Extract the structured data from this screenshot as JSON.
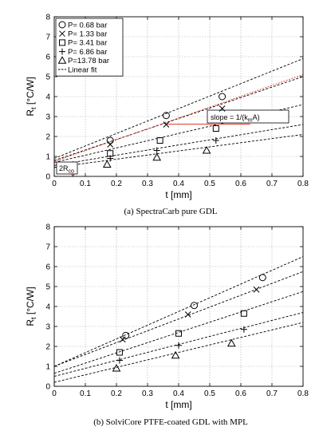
{
  "chart_data": [
    {
      "type": "scatter",
      "caption": "(a) SpectraCarb pure GDL",
      "xlabel": "t [mm]",
      "ylabel_main": "R",
      "ylabel_sub": "t",
      "ylabel_unit": " [°C/W]",
      "xlim": [
        0,
        0.8
      ],
      "ylim": [
        0,
        8
      ],
      "xticks": [
        "0",
        "0.1",
        "0.2",
        "0.3",
        "0.4",
        "0.5",
        "0.6",
        "0.7",
        "0.8"
      ],
      "yticks": [
        "0",
        "1",
        "2",
        "3",
        "4",
        "5",
        "6",
        "7",
        "8"
      ],
      "grid": true,
      "legend_position": "top-left",
      "legend_fit_label": "Linear fit",
      "series": [
        {
          "name": "P= 0.68 bar",
          "marker": "circle",
          "x": [
            0.18,
            0.36,
            0.54
          ],
          "y": [
            1.8,
            3.05,
            4.0
          ],
          "fit": [
            0.9,
            5.9
          ]
        },
        {
          "name": "P= 1.33 bar",
          "marker": "x",
          "x": [
            0.18,
            0.36,
            0.54
          ],
          "y": [
            1.6,
            2.6,
            3.4
          ],
          "fit": [
            0.8,
            5.0
          ]
        },
        {
          "name": "P= 3.41 bar",
          "marker": "square",
          "x": [
            0.18,
            0.34,
            0.52
          ],
          "y": [
            1.15,
            1.8,
            2.4
          ],
          "fit": [
            0.7,
            3.6
          ]
        },
        {
          "name": "P= 6.86 bar",
          "marker": "plus",
          "x": [
            0.18,
            0.33,
            0.52
          ],
          "y": [
            0.9,
            1.3,
            1.8
          ],
          "fit": [
            0.55,
            2.6
          ]
        },
        {
          "name": "P=13.78 bar",
          "marker": "triangle",
          "x": [
            0.17,
            0.33,
            0.49
          ],
          "y": [
            0.6,
            0.95,
            1.3
          ],
          "fit": [
            0.45,
            2.1
          ]
        }
      ],
      "annotations": {
        "slope_label_main": "slope = 1/(k",
        "slope_label_sub": "m",
        "slope_label_end": "A)",
        "rco_label_main": "2R",
        "rco_label_sub": "co",
        "red_fit": [
          0.75,
          5.1
        ]
      }
    },
    {
      "type": "scatter",
      "caption": "(b) SolviCore PTFE-coated GDL with MPL",
      "xlabel": "t [mm]",
      "ylabel_main": "R",
      "ylabel_sub": "t",
      "ylabel_unit": " [°C/W]",
      "xlim": [
        0,
        0.8
      ],
      "ylim": [
        0,
        8
      ],
      "xticks": [
        "0",
        "0.1",
        "0.2",
        "0.3",
        "0.4",
        "0.5",
        "0.6",
        "0.7",
        "0.8"
      ],
      "yticks": [
        "0",
        "1",
        "2",
        "3",
        "4",
        "5",
        "6",
        "7",
        "8"
      ],
      "grid": true,
      "series": [
        {
          "marker": "circle",
          "x": [
            0.23,
            0.45,
            0.67
          ],
          "y": [
            2.55,
            4.05,
            5.45
          ],
          "fit": [
            1.0,
            6.5
          ]
        },
        {
          "marker": "x",
          "x": [
            0.22,
            0.43,
            0.65
          ],
          "y": [
            2.35,
            3.6,
            4.85
          ],
          "fit": [
            1.0,
            5.75
          ]
        },
        {
          "marker": "square",
          "x": [
            0.21,
            0.4,
            0.61
          ],
          "y": [
            1.7,
            2.65,
            3.65
          ],
          "fit": [
            0.65,
            4.75
          ]
        },
        {
          "marker": "plus",
          "x": [
            0.21,
            0.4,
            0.61
          ],
          "y": [
            1.3,
            2.05,
            2.85
          ],
          "fit": [
            0.5,
            3.7
          ]
        },
        {
          "marker": "triangle",
          "x": [
            0.2,
            0.39,
            0.57
          ],
          "y": [
            0.9,
            1.55,
            2.15
          ],
          "fit": [
            0.2,
            3.2
          ]
        }
      ]
    }
  ]
}
